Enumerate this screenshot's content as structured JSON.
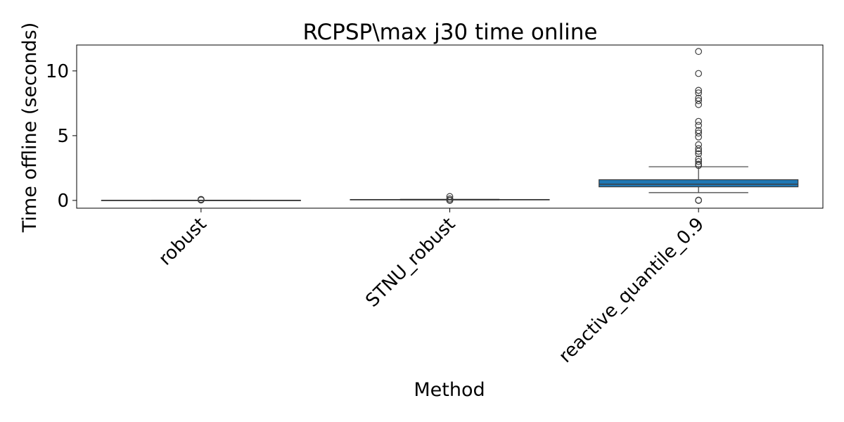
{
  "chart_data": {
    "type": "box",
    "title": "RCPSP\\max j30 time online",
    "xlabel": "Method",
    "ylabel": "Time offline (seconds)",
    "ylim": [
      -0.6,
      12.0
    ],
    "yticks": [
      0,
      5,
      10
    ],
    "grid": false,
    "box_color": "#1f77b4",
    "categories": [
      "robust",
      "STNU_robust",
      "reactive_quantile_0.9"
    ],
    "boxes": [
      {
        "name": "robust",
        "whisker_low": 0.0,
        "q1": 0.0,
        "median": 0.0,
        "q3": 0.01,
        "whisker_high": 0.02,
        "outliers": [
          0.03,
          0.06,
          0.08
        ]
      },
      {
        "name": "STNU_robust",
        "whisker_low": 0.03,
        "q1": 0.05,
        "median": 0.06,
        "q3": 0.07,
        "whisker_high": 0.09,
        "outliers": [
          0.0,
          0.02,
          0.12,
          0.3
        ]
      },
      {
        "name": "reactive_quantile_0.9",
        "whisker_low": 0.6,
        "q1": 1.05,
        "median": 1.25,
        "q3": 1.6,
        "whisker_high": 2.6,
        "outliers": [
          0.0,
          0.02,
          2.7,
          2.8,
          3.0,
          3.2,
          3.6,
          3.8,
          4.0,
          4.3,
          4.9,
          5.2,
          5.4,
          5.8,
          6.1,
          7.4,
          7.7,
          7.9,
          8.3,
          8.5,
          9.8,
          11.5
        ]
      }
    ]
  }
}
